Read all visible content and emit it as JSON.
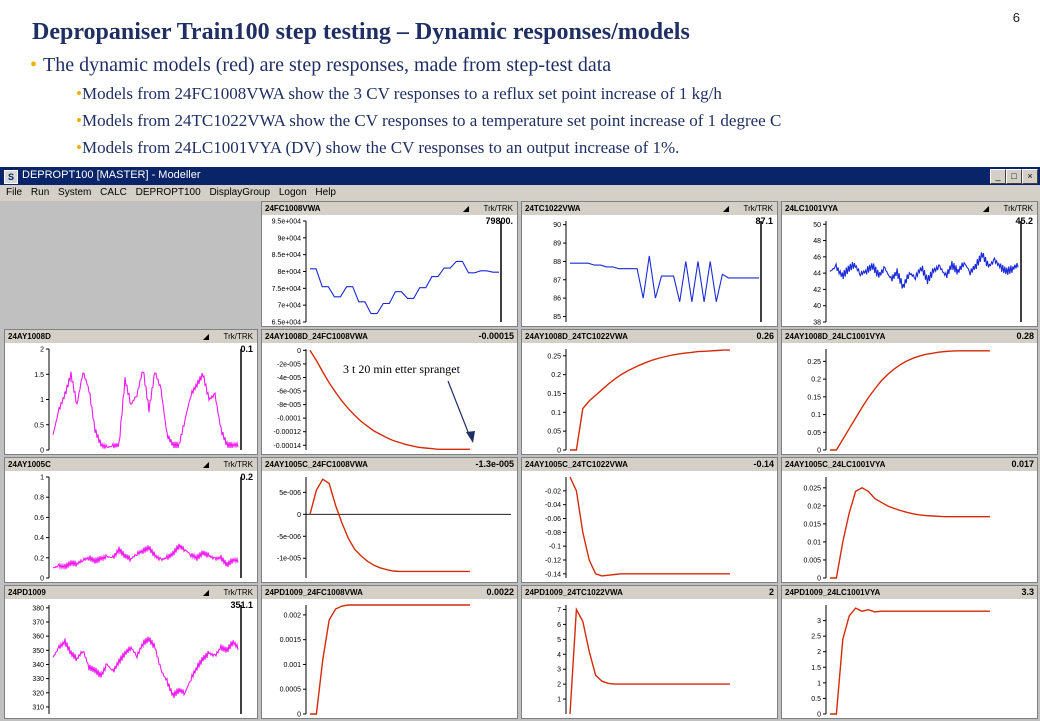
{
  "slide": {
    "page_number": "6",
    "title": "Depropaniser Train100 step testing – Dynamic responses/models",
    "bullet1": "The dynamic models (red) are step responses, made from step-test data",
    "sub_bullets": [
      "Models from 24FC1008VWA show the 3 CV responses to a reflux set point increase of 1 kg/h",
      "Models from 24TC1022VWA show the CV responses to a temperature set point increase of 1 degree C",
      "Models from 24LC1001VYA (DV) show the CV responses to an output increase of 1%."
    ]
  },
  "app": {
    "icon": "S",
    "window_title": "DEPROPT100 [MASTER] - Modeller",
    "menu": [
      "File",
      "Run",
      "System",
      "CALC",
      "DEPROPT100",
      "DisplayGroup",
      "Logon",
      "Help"
    ],
    "window_buttons": [
      "_",
      "□",
      "×"
    ]
  },
  "trk_label": "Trk/TRK",
  "annotation": "3 t 20 min etter spranget",
  "colors": {
    "model": "#d42a0a",
    "cv": "#1a2ad8",
    "mv": "#f018f0",
    "window_title": "#0a246a",
    "chrome": "#d4d0c8"
  },
  "panels": [
    {
      "name": "24FC1008VWA",
      "value": "79800.",
      "type": "cv",
      "ticks": [
        "9.5e+004",
        "9e+004",
        "8.5e+004",
        "8e+004",
        "7.5e+004",
        "7e+004",
        "6.5e+004"
      ],
      "ylim": [
        65000,
        95000
      ],
      "y": [
        80800,
        80800,
        75500,
        75500,
        72500,
        72500,
        75500,
        75500,
        71000,
        71000,
        67500,
        67500,
        70500,
        70500,
        74000,
        74000,
        72000,
        72000,
        75200,
        75200,
        78500,
        78500,
        81000,
        81000,
        83000,
        83000,
        79600,
        79600,
        80200,
        80200,
        79800,
        79800
      ]
    },
    {
      "name": "24TC1022VWA",
      "value": "87.1",
      "type": "cv",
      "ticks": [
        "90",
        "89",
        "88",
        "87",
        "86",
        "85"
      ],
      "ylim": [
        84.7,
        90.2
      ],
      "y": [
        87.9,
        87.9,
        87.9,
        87.9,
        87.8,
        87.8,
        87.7,
        87.7,
        87.6,
        87.6,
        87.6,
        87.6,
        86.0,
        88.3,
        86.0,
        87.2,
        87.2,
        87.2,
        85.8,
        88.0,
        85.8,
        88.0,
        85.8,
        88.0,
        85.8,
        87.3,
        87.1,
        87.1,
        87.1,
        87.1,
        87.1,
        87.1
      ]
    },
    {
      "name": "24LC1001VYA",
      "value": "45.2",
      "type": "cv",
      "ticks": [
        "50",
        "48",
        "46",
        "44",
        "42",
        "40",
        "38"
      ],
      "ylim": [
        38,
        50.4
      ],
      "y": [
        44.2,
        44.8,
        43.6,
        44.5,
        45.1,
        43.9,
        44.3,
        44.9,
        43.7,
        44.6,
        43.2,
        44.1,
        42.3,
        44.0,
        43.5,
        44.7,
        43.1,
        44.3,
        44.8,
        43.6,
        45.0,
        44.2,
        45.3,
        44.1,
        45.0,
        46.3,
        44.8,
        45.6,
        44.7,
        44.2,
        44.6,
        45.1
      ]
    },
    {
      "name": "24AY1008D",
      "value": "0.1",
      "type": "mv",
      "ticks": [
        "2",
        "1.5",
        "1",
        "0.5",
        "0"
      ],
      "ylim": [
        0,
        2
      ],
      "y": [
        0.3,
        0.8,
        1.1,
        1.5,
        0.9,
        1.55,
        1.2,
        0.4,
        0.1,
        0.05,
        0.08,
        0.1,
        1.4,
        0.9,
        1.1,
        1.6,
        0.8,
        1.55,
        1.2,
        0.3,
        0.1,
        0.1,
        0.6,
        1.1,
        1.3,
        1.5,
        1.0,
        1.1,
        0.4,
        0.1,
        0.1,
        0.1
      ]
    },
    {
      "name": "24AY1008D_24FC1008VWA",
      "value": "-0.00015",
      "type": "model",
      "ticks": [
        "0",
        "-2e-005",
        "-4e-005",
        "-6e-005",
        "-8e-005",
        "-0.0001",
        "-0.00012",
        "-0.00014"
      ],
      "ylim": [
        -0.000147,
        2e-06
      ],
      "y": [
        0,
        -1.5e-05,
        -3.2e-05,
        -4.8e-05,
        -6.2e-05,
        -7.5e-05,
        -8.6e-05,
        -9.6e-05,
        -0.000105,
        -0.000112,
        -0.000119,
        -0.000124,
        -0.000129,
        -0.000133,
        -0.000136,
        -0.000139,
        -0.000141,
        -0.000143,
        -0.000144,
        -0.000145,
        -0.000146,
        -0.000146,
        -0.000146,
        -0.000146,
        -0.000146,
        -0.000146
      ]
    },
    {
      "name": "24AY1008D_24TC1022VWA",
      "value": "0.26",
      "type": "model",
      "ticks": [
        "0.25",
        "0.2",
        "0.15",
        "0.1",
        "0.05",
        "0"
      ],
      "ylim": [
        0,
        0.268
      ],
      "y": [
        0,
        0,
        0.11,
        0.13,
        0.145,
        0.16,
        0.175,
        0.188,
        0.2,
        0.21,
        0.218,
        0.226,
        0.233,
        0.239,
        0.244,
        0.248,
        0.252,
        0.255,
        0.257,
        0.259,
        0.261,
        0.262,
        0.263,
        0.264,
        0.265,
        0.265
      ]
    },
    {
      "name": "24AY1008D_24LC1001VYA",
      "value": "0.28",
      "type": "model",
      "ticks": [
        "0.25",
        "0.2",
        "0.15",
        "0.1",
        "0.05",
        "0"
      ],
      "ylim": [
        0,
        0.285
      ],
      "y": [
        0,
        0,
        0.03,
        0.06,
        0.09,
        0.12,
        0.148,
        0.172,
        0.195,
        0.213,
        0.228,
        0.241,
        0.251,
        0.259,
        0.265,
        0.27,
        0.273,
        0.276,
        0.278,
        0.279,
        0.28,
        0.28,
        0.28,
        0.28,
        0.28,
        0.28
      ]
    },
    {
      "name": "24AY1005C",
      "value": "0.2",
      "type": "mv",
      "ticks": [
        "1",
        "0.8",
        "0.6",
        "0.4",
        "0.2",
        "0"
      ],
      "ylim": [
        0,
        1
      ],
      "y": [
        0.1,
        0.12,
        0.11,
        0.15,
        0.14,
        0.18,
        0.2,
        0.17,
        0.19,
        0.21,
        0.2,
        0.28,
        0.22,
        0.19,
        0.24,
        0.27,
        0.3,
        0.22,
        0.18,
        0.2,
        0.24,
        0.32,
        0.28,
        0.23,
        0.2,
        0.25,
        0.22,
        0.19,
        0.2,
        0.13,
        0.18,
        0.17
      ]
    },
    {
      "name": "24AY1005C_24FC1008VWA",
      "value": "-1.3e-005",
      "type": "model",
      "zero": true,
      "ticks": [
        "5e-006",
        "0",
        "-5e-006",
        "-1e-005"
      ],
      "ylim": [
        -1.45e-05,
        8.5e-06
      ],
      "y": [
        0,
        5.5e-06,
        8e-06,
        7e-06,
        2e-06,
        -2e-06,
        -5.5e-06,
        -8e-06,
        -9.5e-06,
        -1.07e-05,
        -1.16e-05,
        -1.22e-05,
        -1.26e-05,
        -1.29e-05,
        -1.3e-05,
        -1.3e-05,
        -1.3e-05,
        -1.3e-05,
        -1.3e-05,
        -1.3e-05,
        -1.3e-05,
        -1.3e-05,
        -1.3e-05,
        -1.3e-05,
        -1.3e-05,
        -1.3e-05
      ]
    },
    {
      "name": "24AY1005C_24TC1022VWA",
      "value": "-0.14",
      "type": "model",
      "ticks": [
        "-0.02",
        "-0.04",
        "-0.06",
        "-0.08",
        "-0.1",
        "-0.12",
        "-0.14"
      ],
      "ylim": [
        -0.146,
        0
      ],
      "y": [
        0,
        -0.02,
        -0.08,
        -0.12,
        -0.14,
        -0.143,
        -0.142,
        -0.141,
        -0.14,
        -0.14,
        -0.14,
        -0.14,
        -0.14,
        -0.14,
        -0.14,
        -0.14,
        -0.14,
        -0.14,
        -0.14,
        -0.14,
        -0.14,
        -0.14,
        -0.14,
        -0.14,
        -0.14,
        -0.14
      ]
    },
    {
      "name": "24AY1005C_24LC1001VYA",
      "value": "0.017",
      "type": "model",
      "ticks": [
        "0.025",
        "0.02",
        "0.015",
        "0.01",
        "0.005",
        "0"
      ],
      "ylim": [
        0,
        0.028
      ],
      "y": [
        0,
        0,
        0.01,
        0.018,
        0.024,
        0.025,
        0.024,
        0.022,
        0.021,
        0.02,
        0.0193,
        0.0187,
        0.0182,
        0.0178,
        0.0175,
        0.0173,
        0.0172,
        0.0171,
        0.017,
        0.017,
        0.017,
        0.017,
        0.017,
        0.017,
        0.017,
        0.017
      ]
    },
    {
      "name": "24PD1009",
      "value": "351.1",
      "type": "mv",
      "ticks": [
        "380",
        "370",
        "360",
        "350",
        "340",
        "330",
        "320",
        "310"
      ],
      "ylim": [
        305,
        382
      ],
      "y": [
        345,
        352,
        356,
        348,
        344,
        350,
        338,
        336,
        332,
        340,
        335,
        342,
        348,
        352,
        346,
        355,
        358,
        352,
        336,
        328,
        318,
        322,
        320,
        330,
        338,
        344,
        348,
        346,
        352,
        350,
        356,
        351
      ]
    },
    {
      "name": "24PD1009_24FC1008VWA",
      "value": "0.0022",
      "type": "model",
      "ticks": [
        "0.002",
        "0.0015",
        "0.001",
        "0.0005",
        "0"
      ],
      "ylim": [
        0,
        0.0022
      ],
      "y": [
        0,
        0,
        0.0011,
        0.0019,
        0.00212,
        0.00218,
        0.0022,
        0.0022,
        0.0022,
        0.0022,
        0.0022,
        0.0022,
        0.0022,
        0.0022,
        0.0022,
        0.0022,
        0.0022,
        0.0022,
        0.0022,
        0.0022,
        0.0022,
        0.0022,
        0.0022,
        0.0022,
        0.0022,
        0.0022
      ]
    },
    {
      "name": "24PD1009_24TC1022VWA",
      "value": "2",
      "type": "model",
      "ticks": [
        "7",
        "6",
        "5",
        "4",
        "3",
        "2",
        "1"
      ],
      "ylim": [
        0,
        7.3
      ],
      "y": [
        0,
        7.0,
        6.2,
        4.2,
        2.6,
        2.2,
        2.05,
        2.0,
        2.0,
        2.0,
        2.0,
        2.0,
        2.0,
        2.0,
        2.0,
        2.0,
        2.0,
        2.0,
        2.0,
        2.0,
        2.0,
        2.0,
        2.0,
        2.0,
        2.0,
        2.0
      ]
    },
    {
      "name": "24PD1009_24LC1001VYA",
      "value": "3.3",
      "type": "model",
      "ticks": [
        "3",
        "2.5",
        "2",
        "1.5",
        "1",
        "0.5",
        "0"
      ],
      "ylim": [
        0,
        3.5
      ],
      "y": [
        0,
        0,
        2.4,
        3.15,
        3.4,
        3.3,
        3.35,
        3.28,
        3.3,
        3.3,
        3.3,
        3.3,
        3.3,
        3.3,
        3.3,
        3.3,
        3.3,
        3.3,
        3.3,
        3.3,
        3.3,
        3.3,
        3.3,
        3.3,
        3.3,
        3.3
      ]
    }
  ]
}
